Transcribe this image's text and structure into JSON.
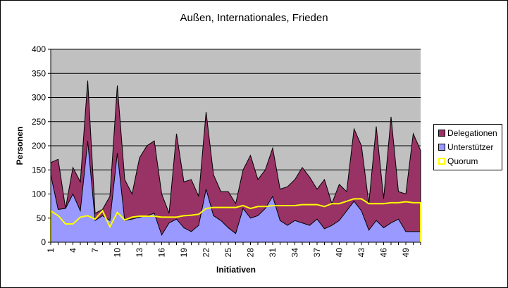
{
  "chart_data": {
    "type": "area",
    "title": "Außen, Internationales, Frieden",
    "xlabel": "Initiativen",
    "ylabel": "Personen",
    "ylim": [
      0,
      400
    ],
    "yticks": [
      0,
      50,
      100,
      150,
      200,
      250,
      300,
      350,
      400
    ],
    "xticks": [
      1,
      4,
      7,
      10,
      13,
      16,
      19,
      22,
      25,
      28,
      31,
      34,
      37,
      40,
      43,
      46,
      49
    ],
    "x": [
      1,
      2,
      3,
      4,
      5,
      6,
      7,
      8,
      9,
      10,
      11,
      12,
      13,
      14,
      15,
      16,
      17,
      18,
      19,
      20,
      21,
      22,
      23,
      24,
      25,
      26,
      27,
      28,
      29,
      30,
      31,
      32,
      33,
      34,
      35,
      36,
      37,
      38,
      39,
      40,
      41,
      42,
      43,
      44,
      45,
      46,
      47,
      48,
      49,
      50,
      51
    ],
    "grid": true,
    "legend_position": "right",
    "series": [
      {
        "name": "Delegationen",
        "type": "area",
        "color": "#993366",
        "values": [
          165,
          172,
          70,
          155,
          125,
          335,
          60,
          68,
          95,
          325,
          130,
          100,
          175,
          200,
          210,
          100,
          60,
          225,
          125,
          130,
          95,
          270,
          140,
          105,
          105,
          80,
          150,
          180,
          130,
          150,
          195,
          110,
          115,
          130,
          155,
          135,
          110,
          130,
          80,
          120,
          105,
          235,
          200,
          80,
          240,
          90,
          260,
          105,
          100,
          225,
          190
        ]
      },
      {
        "name": "Unterstützer",
        "type": "area",
        "color": "#9999FF",
        "values": [
          140,
          68,
          70,
          100,
          65,
          210,
          45,
          55,
          45,
          185,
          45,
          48,
          52,
          55,
          60,
          15,
          40,
          48,
          30,
          22,
          35,
          110,
          55,
          45,
          30,
          18,
          70,
          50,
          55,
          70,
          95,
          45,
          35,
          45,
          40,
          35,
          48,
          28,
          35,
          45,
          65,
          85,
          65,
          25,
          45,
          30,
          40,
          48,
          22,
          22,
          22
        ]
      },
      {
        "name": "Quorum",
        "type": "line",
        "color": "#FFFF00",
        "values": [
          65,
          55,
          38,
          38,
          52,
          55,
          48,
          65,
          32,
          62,
          46,
          52,
          54,
          54,
          54,
          52,
          52,
          52,
          55,
          56,
          58,
          70,
          72,
          72,
          72,
          72,
          76,
          70,
          74,
          74,
          76,
          76,
          76,
          76,
          78,
          78,
          78,
          74,
          80,
          80,
          85,
          90,
          90,
          80,
          80,
          80,
          82,
          82,
          84,
          82,
          82
        ]
      }
    ]
  },
  "legend": {
    "items": [
      {
        "label": "Delegationen",
        "color": "#993366",
        "kind": "fill"
      },
      {
        "label": "Unterstützer",
        "color": "#9999FF",
        "kind": "fill"
      },
      {
        "label": "Quorum",
        "color": "#FFFF00",
        "kind": "line"
      }
    ]
  },
  "plot": {
    "background": "#C0C0C0"
  }
}
